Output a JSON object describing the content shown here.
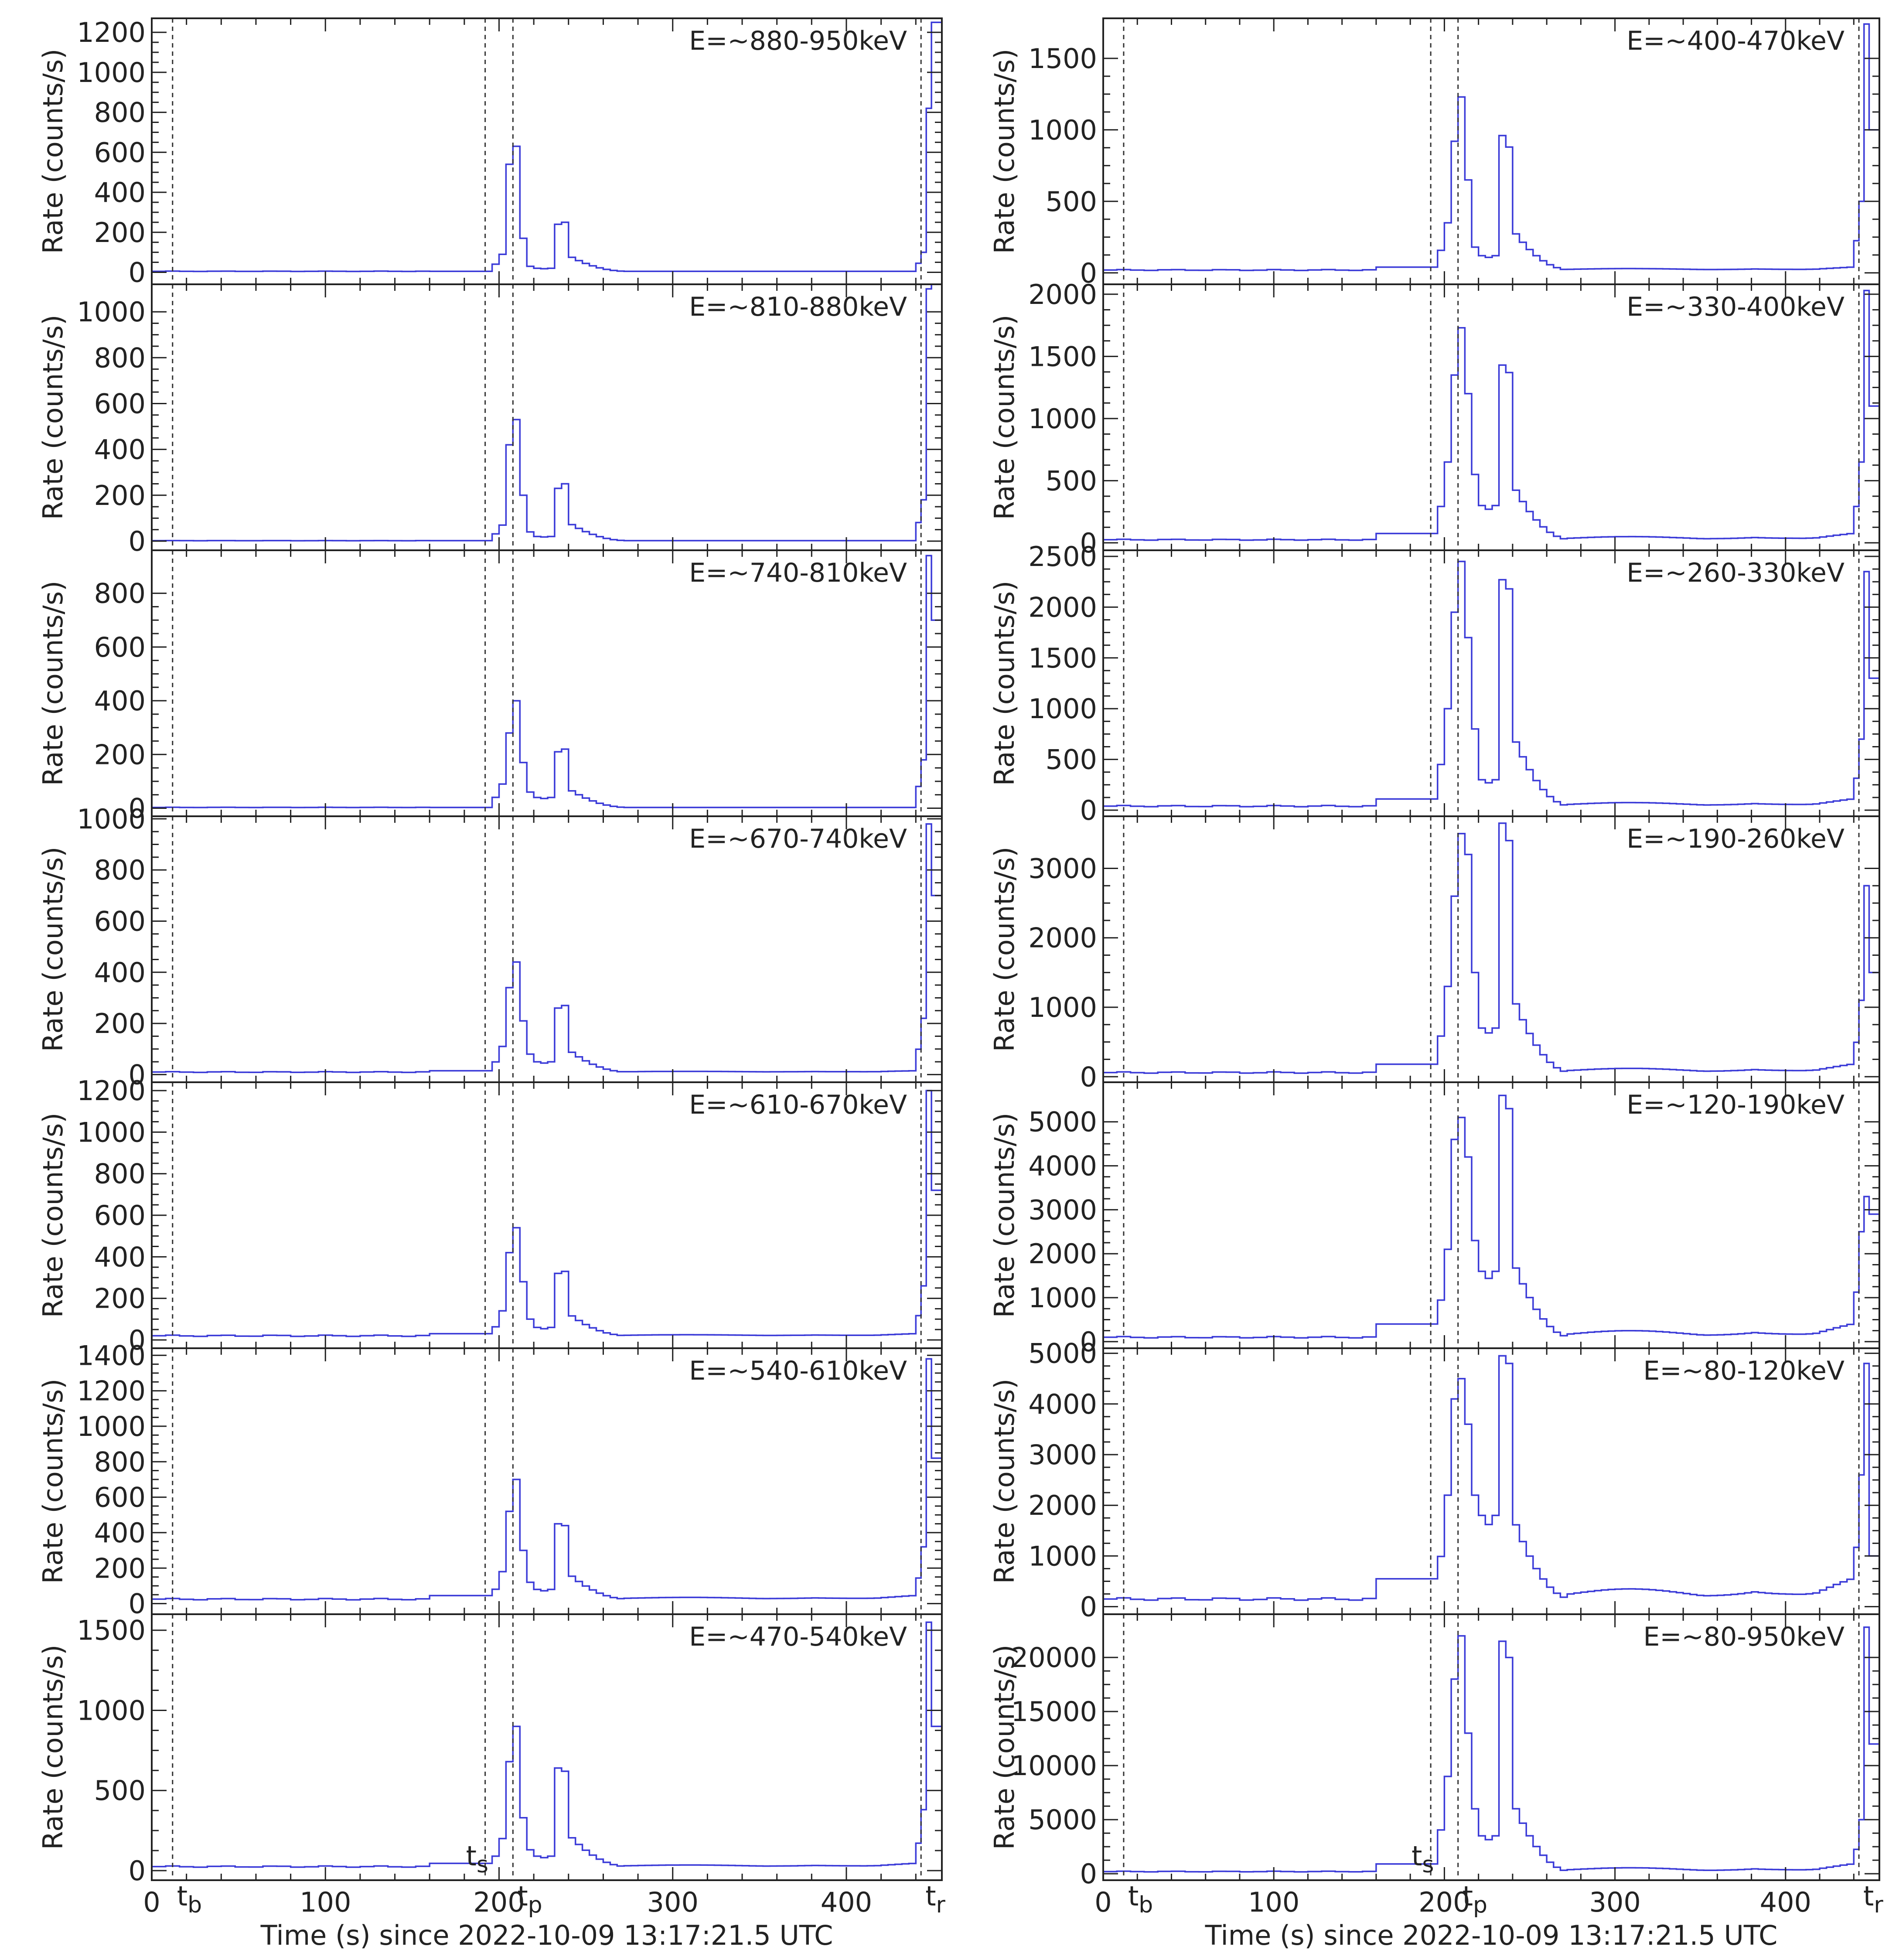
{
  "chart_data": {
    "type": "line",
    "style": "step",
    "colors": {
      "curve": "#3b3bd8",
      "axes": "#222222"
    },
    "xlabel": "Time (s) since 2022-10-09 13:17:21.5 UTC",
    "ylabel": "Rate (counts/s)",
    "xlim": [
      0,
      455
    ],
    "x_ticks": [
      0,
      100,
      200,
      300,
      400
    ],
    "markers": [
      {
        "name": "t_b",
        "label": "t",
        "sub": "b",
        "x": 12
      },
      {
        "name": "t_s",
        "label": "t",
        "sub": "s",
        "x": 192
      },
      {
        "name": "t_p",
        "label": "t",
        "sub": "p",
        "x": 208
      },
      {
        "name": "t_r",
        "label": "t",
        "sub": "r",
        "x": 443
      }
    ],
    "time_bins": [
      0,
      8,
      16,
      24,
      32,
      40,
      48,
      56,
      64,
      72,
      80,
      88,
      96,
      104,
      112,
      120,
      128,
      136,
      144,
      152,
      160,
      168,
      176,
      184,
      192,
      196,
      200,
      204,
      208,
      212,
      216,
      220,
      224,
      228,
      232,
      236,
      240,
      244,
      248,
      252,
      256,
      260,
      264,
      268,
      272,
      276,
      280,
      284,
      288,
      292,
      296,
      300,
      304,
      308,
      312,
      316,
      320,
      324,
      328,
      332,
      336,
      340,
      344,
      348,
      352,
      356,
      360,
      364,
      368,
      372,
      376,
      380,
      384,
      388,
      392,
      396,
      400,
      404,
      408,
      412,
      416,
      420,
      424,
      428,
      432,
      436,
      440,
      443,
      446,
      449,
      452
    ],
    "panels": [
      {
        "id": "880-950",
        "band": "E=~880-950keV",
        "column": 0,
        "row": 0,
        "ylim": [
          -60,
          1270
        ],
        "yticks": [
          0,
          200,
          400,
          600,
          800,
          1000,
          1200
        ],
        "peaks": [
          90,
          540,
          630,
          170,
          30,
          20,
          240,
          250
        ],
        "tail": [
          100,
          820,
          1250
        ],
        "pre": 0,
        "base": 5
      },
      {
        "id": "810-880",
        "band": "E=~810-880keV",
        "column": 0,
        "row": 1,
        "ylim": [
          -40,
          1120
        ],
        "yticks": [
          0,
          200,
          400,
          600,
          800,
          1000
        ],
        "peaks": [
          70,
          420,
          530,
          200,
          40,
          20,
          230,
          250
        ],
        "tail": [
          180,
          1100,
          1120
        ],
        "pre": 0,
        "base": 2
      },
      {
        "id": "740-810",
        "band": "E=~740-810keV",
        "column": 0,
        "row": 2,
        "ylim": [
          -30,
          960
        ],
        "yticks": [
          0,
          200,
          400,
          600,
          800
        ],
        "peaks": [
          90,
          280,
          400,
          170,
          60,
          40,
          210,
          220
        ],
        "tail": [
          180,
          940,
          700
        ],
        "pre": 0,
        "base": 3
      },
      {
        "id": "670-740",
        "band": "E=~670-740keV",
        "column": 0,
        "row": 3,
        "ylim": [
          -30,
          1010
        ],
        "yticks": [
          0,
          200,
          400,
          600,
          800,
          1000
        ],
        "peaks": [
          110,
          340,
          440,
          210,
          80,
          50,
          260,
          270
        ],
        "tail": [
          220,
          980,
          700
        ],
        "pre": 5,
        "base": 10
      },
      {
        "id": "610-670",
        "band": "E=~610-670keV",
        "column": 0,
        "row": 4,
        "ylim": [
          -40,
          1240
        ],
        "yticks": [
          0,
          200,
          400,
          600,
          800,
          1000,
          1200
        ],
        "peaks": [
          140,
          420,
          540,
          280,
          100,
          60,
          320,
          330
        ],
        "tail": [
          260,
          1200,
          720
        ],
        "pre": 10,
        "base": 20
      },
      {
        "id": "540-610",
        "band": "E=~540-610keV",
        "column": 0,
        "row": 5,
        "ylim": [
          -60,
          1440
        ],
        "yticks": [
          0,
          200,
          400,
          600,
          800,
          1000,
          1200,
          1400
        ],
        "peaks": [
          180,
          520,
          700,
          300,
          120,
          80,
          450,
          440
        ],
        "tail": [
          320,
          1380,
          820
        ],
        "pre": 20,
        "base": 25
      },
      {
        "id": "470-540",
        "band": "E=~470-540keV",
        "column": 0,
        "row": 6,
        "ylim": [
          -60,
          1600
        ],
        "yticks": [
          0,
          500,
          1000,
          1500
        ],
        "peaks": [
          200,
          680,
          900,
          330,
          130,
          90,
          640,
          620
        ],
        "tail": [
          380,
          1550,
          900
        ],
        "pre": 20,
        "base": 25
      },
      {
        "id": "400-470",
        "band": "E=~400-470keV",
        "column": 1,
        "row": 0,
        "ylim": [
          -80,
          1780
        ],
        "yticks": [
          0,
          500,
          1000,
          1500
        ],
        "peaks": [
          350,
          920,
          1230,
          650,
          180,
          120,
          960,
          880
        ],
        "tail": [
          500,
          1740,
          1000
        ],
        "pre": 20,
        "base": 20
      },
      {
        "id": "330-400",
        "band": "E=~330-400keV",
        "column": 1,
        "row": 1,
        "ylim": [
          -60,
          2080
        ],
        "yticks": [
          0,
          500,
          1000,
          1500,
          2000
        ],
        "peaks": [
          650,
          1350,
          1730,
          1200,
          550,
          300,
          1430,
          1370
        ],
        "tail": [
          650,
          2030,
          1100
        ],
        "pre": 50,
        "base": 25
      },
      {
        "id": "260-330",
        "band": "E=~260-330keV",
        "column": 1,
        "row": 2,
        "ylim": [
          -60,
          2560
        ],
        "yticks": [
          0,
          500,
          1000,
          1500,
          2000,
          2500
        ],
        "peaks": [
          1000,
          1950,
          2450,
          1700,
          800,
          300,
          2270,
          2180
        ],
        "tail": [
          700,
          2350,
          1300
        ],
        "pre": 70,
        "base": 40
      },
      {
        "id": "190-260",
        "band": "E=~190-260keV",
        "column": 1,
        "row": 3,
        "ylim": [
          -80,
          3750
        ],
        "yticks": [
          0,
          1000,
          2000,
          3000
        ],
        "peaks": [
          1300,
          2600,
          3500,
          3200,
          1500,
          700,
          3650,
          3400
        ],
        "tail": [
          1100,
          2750,
          1500
        ],
        "pre": 120,
        "base": 60
      },
      {
        "id": "120-190",
        "band": "E=~120-190keV",
        "column": 1,
        "row": 4,
        "ylim": [
          -150,
          5900
        ],
        "yticks": [
          0,
          1000,
          2000,
          3000,
          4000,
          5000
        ],
        "peaks": [
          2100,
          4600,
          5100,
          4200,
          2300,
          1600,
          5600,
          5300
        ],
        "tail": [
          2500,
          3300,
          2900
        ],
        "pre": 300,
        "base": 100
      },
      {
        "id": "80-120",
        "band": "E=~80-120keV",
        "column": 1,
        "row": 5,
        "ylim": [
          -150,
          5100
        ],
        "yticks": [
          0,
          1000,
          2000,
          3000,
          4000,
          5000
        ],
        "peaks": [
          2200,
          4100,
          4500,
          3600,
          2200,
          1800,
          4950,
          4800
        ],
        "tail": [
          2600,
          4800,
          1000
        ],
        "pre": 400,
        "base": 150
      },
      {
        "id": "80-950",
        "band": "E=~80-950keV",
        "column": 1,
        "row": 6,
        "ylim": [
          -600,
          24000
        ],
        "yticks": [
          0,
          5000,
          10000,
          15000,
          20000
        ],
        "peaks": [
          9000,
          18000,
          22000,
          13000,
          6000,
          3500,
          21500,
          20000
        ],
        "tail": [
          5000,
          22800,
          12000
        ],
        "pre": 700,
        "base": 200
      }
    ]
  }
}
